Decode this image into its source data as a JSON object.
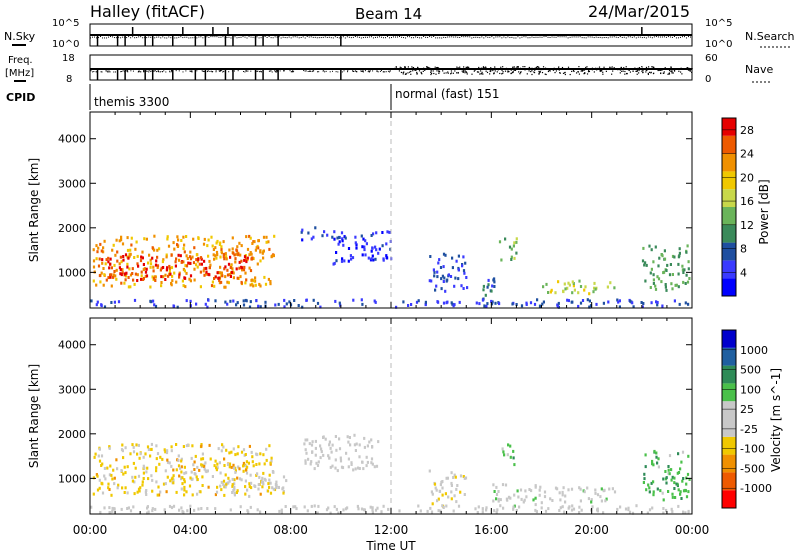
{
  "header": {
    "station": "Halley (fitACF)",
    "beam": "Beam 14",
    "date": "24/Mar/2015"
  },
  "strip_labels": {
    "nsky": "N.Sky",
    "nsky_ticks": [
      "10^5",
      "10^0"
    ],
    "nsearch": "N.Search",
    "nsearch_ticks": [
      "10^5",
      "10^0"
    ],
    "freq": "Freq.",
    "freq_unit": "[MHz]",
    "freq_ticks": [
      "18",
      "8"
    ],
    "nave": "Nave",
    "nave_ticks": [
      "60",
      "0"
    ],
    "cpid": "CPID",
    "cpid_modes": [
      "themis 3300",
      "normal (fast) 151"
    ]
  },
  "time_axis": {
    "label": "Time UT",
    "ticks": [
      "00:00",
      "04:00",
      "08:00",
      "12:00",
      "16:00",
      "20:00",
      "00:00"
    ]
  },
  "colors": {
    "power_scale": [
      "#0000ff",
      "#3a3aff",
      "#1f4fa0",
      "#3a8a5a",
      "#6ab45a",
      "#c8d84a",
      "#f0c800",
      "#f09000",
      "#ee5a00",
      "#e60000"
    ],
    "velocity_scale": [
      "#ff0000",
      "#ee5a00",
      "#f09000",
      "#f0c800",
      "#c8c8c8",
      "#c8c8c8",
      "#4ac04a",
      "#2e8b57",
      "#1f5fa0",
      "#0000cc"
    ]
  },
  "chart_data": [
    {
      "type": "heatmap",
      "name": "power",
      "xlabel": "",
      "ylabel": "Slant Range [km]",
      "xlim": [
        0,
        24
      ],
      "ylim": [
        200,
        4600
      ],
      "yticks": [
        "1000",
        "2000",
        "3000",
        "4000"
      ],
      "colorbar": {
        "label": "Power [dB]",
        "ticks": [
          "4",
          "8",
          "12",
          "16",
          "20",
          "24",
          "28"
        ],
        "range": [
          0,
          30
        ]
      },
      "regions": [
        {
          "t": [
            0.1,
            7.3
          ],
          "r": [
            700,
            1850
          ],
          "v": 22
        },
        {
          "t": [
            0.3,
            6.5
          ],
          "r": [
            850,
            1450
          ],
          "v": 27
        },
        {
          "t": [
            8.3,
            9.5
          ],
          "r": [
            1750,
            2050
          ],
          "v": 5
        },
        {
          "t": [
            9.5,
            12.0
          ],
          "r": [
            1200,
            1950
          ],
          "v": 4
        },
        {
          "t": [
            13.5,
            15.0
          ],
          "r": [
            600,
            1450
          ],
          "v": 6
        },
        {
          "t": [
            15.5,
            16.2
          ],
          "r": [
            300,
            900
          ],
          "v": 8
        },
        {
          "t": [
            16.3,
            17.0
          ],
          "r": [
            1300,
            1800
          ],
          "v": 14
        },
        {
          "t": [
            18.0,
            21.0
          ],
          "r": [
            550,
            850
          ],
          "v": 16
        },
        {
          "t": [
            22.0,
            23.9
          ],
          "r": [
            600,
            1650
          ],
          "v": 12
        },
        {
          "t": [
            0.0,
            24.0
          ],
          "r": [
            250,
            420
          ],
          "v": 6
        }
      ]
    },
    {
      "type": "heatmap",
      "name": "velocity",
      "xlabel": "Time UT",
      "ylabel": "Slant Range [km]",
      "xlim": [
        0,
        24
      ],
      "ylim": [
        200,
        4600
      ],
      "yticks": [
        "1000",
        "2000",
        "3000",
        "4000"
      ],
      "colorbar": {
        "label": "Velocity [m s^-1]",
        "ticks": [
          "1000",
          "500",
          "100",
          "25",
          "-25",
          "-100",
          "-500",
          "-1000"
        ],
        "range": [
          -1000,
          1000
        ]
      },
      "regions": [
        {
          "t": [
            0.1,
            7.3
          ],
          "r": [
            650,
            1800
          ],
          "v": -250
        },
        {
          "t": [
            5.0,
            7.8
          ],
          "r": [
            600,
            1200
          ],
          "v": -120
        },
        {
          "t": [
            8.5,
            11.5
          ],
          "r": [
            1200,
            2000
          ],
          "v": 0
        },
        {
          "t": [
            13.5,
            15.0
          ],
          "r": [
            400,
            1200
          ],
          "v": -150
        },
        {
          "t": [
            16.3,
            17.0
          ],
          "r": [
            1300,
            1800
          ],
          "v": 300
        },
        {
          "t": [
            16.0,
            18.0
          ],
          "r": [
            400,
            900
          ],
          "v": 80
        },
        {
          "t": [
            18.0,
            21.0
          ],
          "r": [
            500,
            850
          ],
          "v": 60
        },
        {
          "t": [
            22.0,
            23.9
          ],
          "r": [
            550,
            1650
          ],
          "v": 350
        },
        {
          "t": [
            0.0,
            24.0
          ],
          "r": [
            250,
            420
          ],
          "v": 0
        }
      ]
    }
  ]
}
